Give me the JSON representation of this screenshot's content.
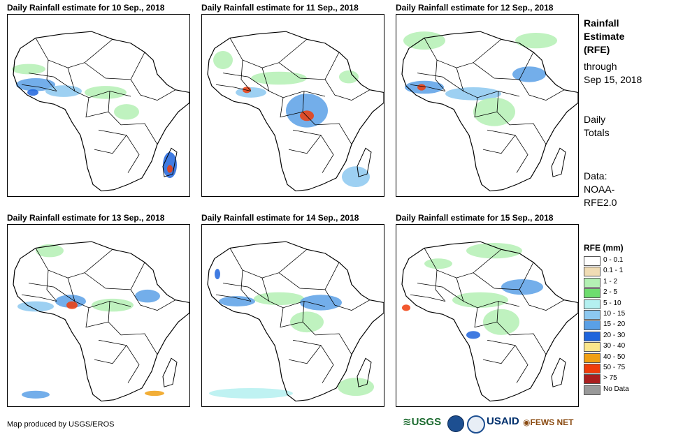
{
  "panels": [
    {
      "title": "Daily Rainfall estimate for 10 Sep., 2018"
    },
    {
      "title": "Daily Rainfall estimate for 11 Sep., 2018"
    },
    {
      "title": "Daily Rainfall estimate for 12 Sep., 2018"
    },
    {
      "title": "Daily Rainfall estimate for 13 Sep., 2018"
    },
    {
      "title": "Daily Rainfall estimate for 14 Sep., 2018"
    },
    {
      "title": "Daily Rainfall estimate for 15 Sep., 2018"
    }
  ],
  "side": {
    "title_line1": "Rainfall",
    "title_line2": "Estimate",
    "title_line3": "(RFE)",
    "through_line1": "through",
    "through_line2": "Sep 15, 2018",
    "totals_line1": "Daily",
    "totals_line2": "Totals",
    "data_line1": "Data:",
    "data_line2": "NOAA-",
    "data_line3": "RFE2.0"
  },
  "legend": {
    "title": "RFE (mm)",
    "items": [
      {
        "label": "0 - 0.1",
        "color": "#ffffff"
      },
      {
        "label": "0.1 - 1",
        "color": "#f0dcb4"
      },
      {
        "label": "1 - 2",
        "color": "#b4f0b4"
      },
      {
        "label": "2 - 5",
        "color": "#6edc6e"
      },
      {
        "label": "5 - 10",
        "color": "#b4f0f0"
      },
      {
        "label": "10 - 15",
        "color": "#8cc8f0"
      },
      {
        "label": "15 - 20",
        "color": "#5aa0e6"
      },
      {
        "label": "20 - 30",
        "color": "#1e64dc"
      },
      {
        "label": "30 - 40",
        "color": "#fae68c"
      },
      {
        "label": "40 - 50",
        "color": "#f0a014"
      },
      {
        "label": "50 - 75",
        "color": "#f03c0a"
      },
      {
        "label": "> 75",
        "color": "#aa1e1e"
      },
      {
        "label": "No Data",
        "color": "#999999"
      }
    ]
  },
  "credit": "Map produced by USGS/EROS",
  "logos": {
    "usgs": "USGS",
    "usaid": "USAID",
    "fewsnet": "FEWS NET"
  }
}
